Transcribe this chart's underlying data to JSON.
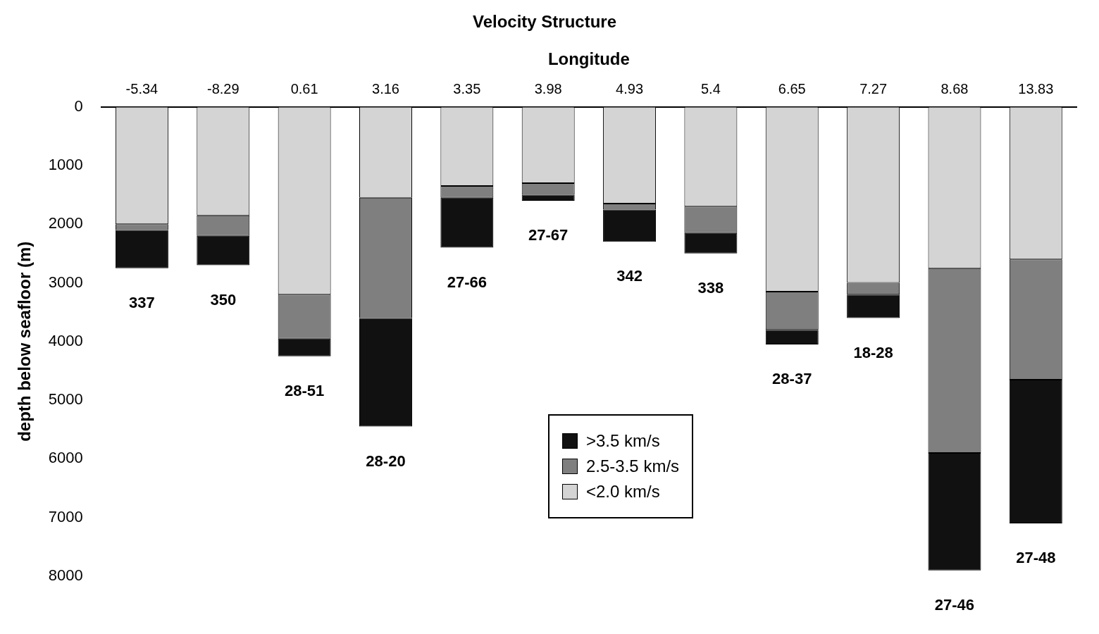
{
  "chart_data": {
    "type": "bar",
    "title": "Velocity Structure",
    "xlabel": "Longitude",
    "ylabel": "depth below seafloor (m)",
    "categories": [
      "-5.34",
      "-8.29",
      "0.61",
      "3.16",
      "3.35",
      "3.98",
      "4.93",
      "5.4",
      "6.65",
      "7.27",
      "8.68",
      "13.83"
    ],
    "stacked": true,
    "series": [
      {
        "name": "<2.0 km/s",
        "color": "#d4d4d4",
        "values": [
          2000,
          1850,
          3200,
          1550,
          1350,
          1300,
          1650,
          1700,
          3150,
          3000,
          2750,
          2600
        ]
      },
      {
        "name": "2.5-3.5 km/s",
        "color": "#7f7f7f",
        "values": [
          100,
          350,
          750,
          2050,
          200,
          200,
          100,
          450,
          650,
          200,
          3150,
          2050
        ]
      },
      {
        "name": ">3.5 km/s",
        "color": "#111111",
        "values": [
          650,
          500,
          300,
          1850,
          850,
          100,
          550,
          350,
          250,
          400,
          2000,
          2450
        ]
      }
    ],
    "ylim": [
      8000,
      0
    ],
    "yticks": [
      0,
      1000,
      2000,
      3000,
      4000,
      5000,
      6000,
      7000,
      8000
    ],
    "grid": false,
    "legend": "bottom",
    "annotations": [
      "337",
      "350",
      "28-51",
      "28-20",
      "27-66",
      "27-67",
      "342",
      "338",
      "28-37",
      "18-28",
      "27-46",
      "27-48"
    ]
  }
}
